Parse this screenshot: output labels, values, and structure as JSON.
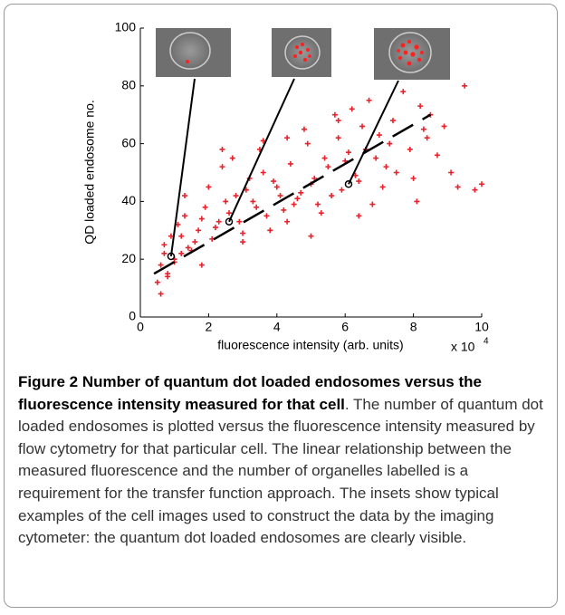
{
  "chart_data": {
    "type": "scatter",
    "y_label": "QD loaded endosome no.",
    "x_label": "fluorescence intensity (arb. units)",
    "x_multiplier": "x 10",
    "x_multiplier_exponent": "4",
    "xlim": [
      0,
      10
    ],
    "xticks": [
      0,
      2,
      4,
      6,
      8,
      10
    ],
    "ylim": [
      0,
      100
    ],
    "yticks": [
      0,
      20,
      40,
      60,
      80,
      100
    ],
    "color": "#e8222a",
    "x": [
      0.5,
      0.6,
      0.7,
      0.8,
      0.9,
      1.0,
      1.1,
      1.2,
      1.3,
      1.4,
      0.6,
      0.8,
      1.0,
      1.2,
      1.5,
      1.7,
      1.9,
      2.1,
      2.3,
      2.5,
      1.6,
      1.8,
      2.0,
      2.2,
      2.4,
      2.6,
      2.8,
      3.0,
      3.2,
      3.4,
      2.7,
      2.9,
      3.1,
      3.3,
      3.5,
      3.7,
      3.9,
      4.1,
      4.3,
      4.5,
      3.6,
      3.8,
      4.0,
      4.2,
      4.4,
      4.6,
      4.8,
      5.0,
      5.2,
      5.4,
      4.7,
      4.9,
      5.1,
      5.3,
      5.5,
      5.7,
      5.9,
      6.1,
      6.3,
      6.5,
      5.6,
      5.8,
      6.0,
      6.2,
      6.4,
      6.6,
      6.8,
      7.0,
      7.2,
      7.4,
      6.7,
      6.9,
      7.1,
      7.3,
      7.5,
      7.7,
      7.9,
      8.1,
      8.3,
      8.5,
      8.0,
      8.2,
      8.4,
      8.7,
      8.9,
      9.1,
      9.3,
      9.5,
      9.8,
      10.0,
      0.7,
      1.3,
      1.8,
      2.4,
      3.0,
      3.6,
      4.3,
      5.0,
      5.8,
      6.4
    ],
    "y": [
      12,
      18,
      25,
      15,
      28,
      20,
      32,
      22,
      35,
      24,
      8,
      14,
      19,
      28,
      23,
      30,
      38,
      27,
      33,
      40,
      26,
      34,
      45,
      31,
      52,
      36,
      42,
      29,
      48,
      38,
      55,
      33,
      44,
      40,
      58,
      35,
      47,
      42,
      62,
      39,
      50,
      30,
      45,
      37,
      53,
      41,
      65,
      46,
      39,
      55,
      43,
      60,
      48,
      36,
      52,
      70,
      44,
      57,
      49,
      66,
      42,
      62,
      54,
      72,
      47,
      58,
      39,
      63,
      52,
      68,
      75,
      55,
      45,
      60,
      50,
      78,
      58,
      40,
      65,
      70,
      48,
      73,
      62,
      56,
      66,
      50,
      45,
      80,
      44,
      46,
      22,
      42,
      18,
      58,
      26,
      61,
      33,
      28,
      68,
      35
    ],
    "fit_line": {
      "x": [
        0.4,
        8.5
      ],
      "y": [
        15,
        70
      ]
    },
    "highlight_points": {
      "x": [
        0.9,
        2.6,
        6.1
      ],
      "y": [
        21,
        33,
        46
      ]
    }
  },
  "caption": {
    "title": "Figure 2 Number of quantum dot loaded endosomes versus the fluorescence intensity measured for that cell",
    "text": ". The number of quantum dot loaded endosomes is plotted versus the fluorescence intensity measured by flow cytometry for that particular cell. The linear relationship between the measured fluorescence and the number of organelles labelled is a requirement for the transfer function approach. The insets show typical examples of the cell images used to construct the data by the imaging cytometer: the quantum dot loaded endosomes are clearly visible."
  }
}
